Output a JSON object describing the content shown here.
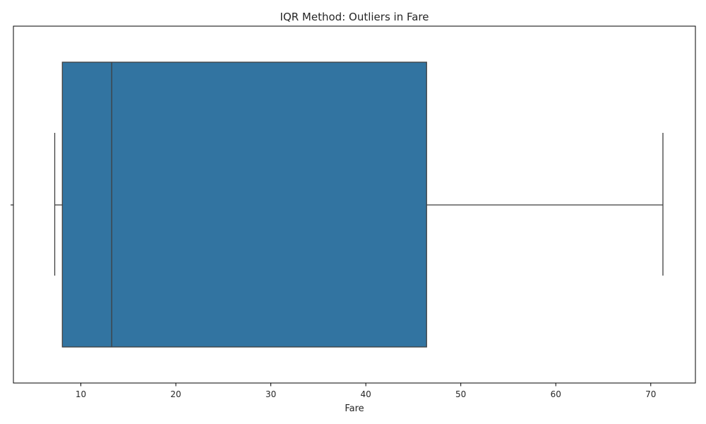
{
  "chart_data": {
    "type": "boxplot",
    "title": "IQR Method: Outliers in Fare",
    "xlabel": "Fare",
    "ylabel": "",
    "orientation": "horizontal",
    "xlim": [
      2.9,
      74.7
    ],
    "xticks": [
      10,
      20,
      30,
      40,
      50,
      60,
      70
    ],
    "grid": false,
    "series": [
      {
        "values": {
          "whisker_low": 7.25,
          "q1": 8.05,
          "median": 13.25,
          "q3": 46.4,
          "whisker_high": 71.28
        },
        "outliers": []
      }
    ],
    "colors": {
      "box_fill": "#3274a1",
      "line": "#3f3f3f",
      "frame": "#000000"
    }
  }
}
